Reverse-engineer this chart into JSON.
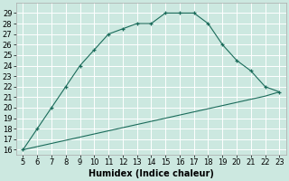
{
  "xlabel": "Humidex (Indice chaleur)",
  "line_color": "#1a6b5a",
  "bg_color": "#cce8e0",
  "grid_color": "#b0d8d0",
  "curve1_x": [
    5,
    6,
    7,
    8,
    9,
    10,
    11,
    12,
    13,
    14,
    15,
    16,
    17,
    18,
    19,
    20,
    21,
    22,
    23
  ],
  "curve1_y": [
    16,
    18,
    20,
    22,
    24,
    25.5,
    27,
    27.5,
    28,
    28,
    29,
    29,
    29,
    28,
    26,
    24.5,
    23.5,
    22,
    21.5
  ],
  "curve2_x": [
    5,
    6,
    7,
    8,
    9,
    10,
    11,
    12,
    13,
    14,
    15,
    16,
    17,
    18,
    19,
    20,
    21,
    22,
    23
  ],
  "curve2_y": [
    16,
    16.3,
    16.6,
    16.9,
    17.2,
    17.5,
    17.8,
    18.1,
    18.4,
    18.7,
    19.0,
    19.3,
    19.6,
    19.9,
    20.2,
    20.5,
    20.8,
    21.1,
    21.5
  ],
  "xlim": [
    4.5,
    23.5
  ],
  "ylim": [
    15.5,
    30
  ],
  "xticks": [
    5,
    6,
    7,
    8,
    9,
    10,
    11,
    12,
    13,
    14,
    15,
    16,
    17,
    18,
    19,
    20,
    21,
    22,
    23
  ],
  "yticks": [
    16,
    17,
    18,
    19,
    20,
    21,
    22,
    23,
    24,
    25,
    26,
    27,
    28,
    29
  ],
  "tick_fontsize": 6,
  "xlabel_fontsize": 7
}
